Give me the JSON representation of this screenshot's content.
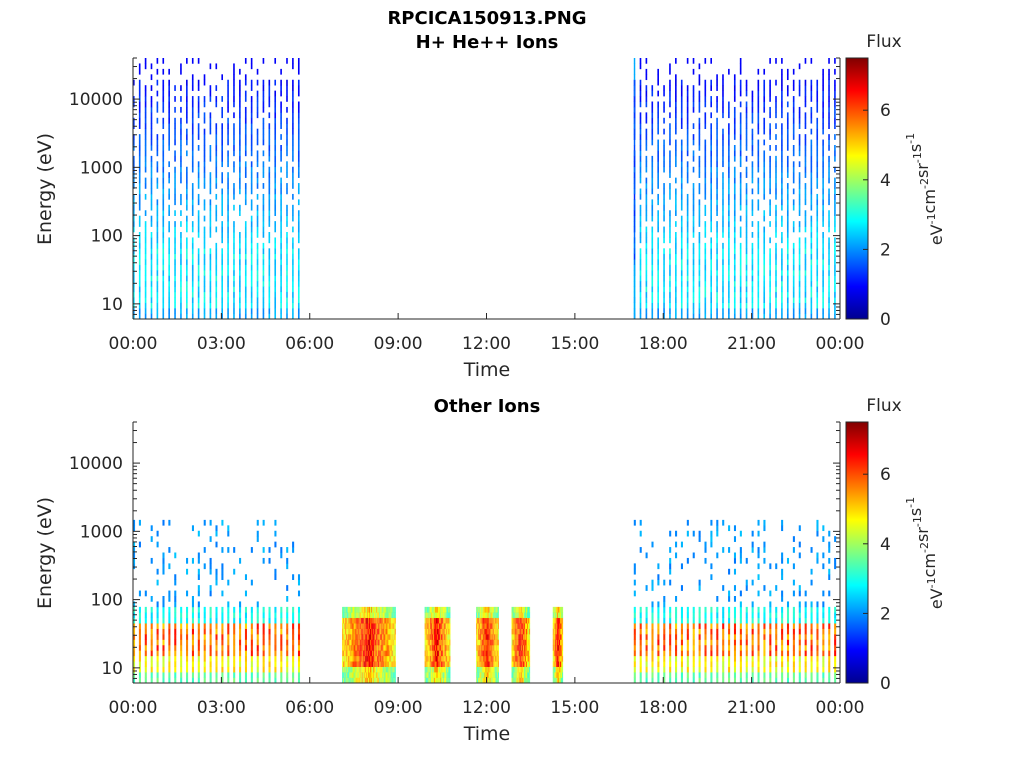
{
  "figure": {
    "title": "RPCICA150913.PNG"
  },
  "chart_data": [
    {
      "type": "heatmap",
      "title": "H+ He++ Ions",
      "xlabel": "Time",
      "ylabel": "Energy (eV)",
      "x_ticks": [
        "00:00",
        "03:00",
        "06:00",
        "09:00",
        "12:00",
        "15:00",
        "18:00",
        "21:00",
        "00:00"
      ],
      "x_range_hours": [
        0,
        24
      ],
      "y_scale": "log",
      "y_ticks": [
        10,
        100,
        1000,
        10000
      ],
      "y_tick_labels": [
        "10",
        "100",
        "1000",
        "10000"
      ],
      "y_range": [
        6,
        40000
      ],
      "colorbar": {
        "title": "Flux",
        "label": "eV-1cm-2sr-1s-1",
        "label_parts": [
          [
            "eV",
            "-1"
          ],
          [
            "cm",
            "-2"
          ],
          [
            "sr",
            "-1"
          ],
          [
            "s",
            "-1"
          ]
        ],
        "ticks": [
          0,
          2,
          4,
          6
        ],
        "range": [
          0,
          7.5
        ],
        "colormap": "jet"
      },
      "data_intervals_hours": [
        [
          0.0,
          5.85
        ],
        [
          17.0,
          24.0
        ]
      ],
      "profile": "solar wind: peak flux ~2-3 at 20-50 eV, low flux (~0.5-1) extending up to ~20000 eV, striped in time"
    },
    {
      "type": "heatmap",
      "title": "Other Ions",
      "xlabel": "Time",
      "ylabel": "Energy (eV)",
      "x_ticks": [
        "00:00",
        "03:00",
        "06:00",
        "09:00",
        "12:00",
        "15:00",
        "18:00",
        "21:00",
        "00:00"
      ],
      "x_range_hours": [
        0,
        24
      ],
      "y_scale": "log",
      "y_ticks": [
        10,
        100,
        1000,
        10000
      ],
      "y_tick_labels": [
        "10",
        "100",
        "1000",
        "10000"
      ],
      "y_range": [
        6,
        40000
      ],
      "colorbar": {
        "title": "Flux",
        "label": "eV-1cm-2sr-1s-1",
        "label_parts": [
          [
            "eV",
            "-1"
          ],
          [
            "cm",
            "-2"
          ],
          [
            "sr",
            "-1"
          ],
          [
            "s",
            "-1"
          ]
        ],
        "ticks": [
          0,
          2,
          4,
          6
        ],
        "range": [
          0,
          7.5
        ],
        "colormap": "jet"
      },
      "data_intervals_hours": [
        [
          0.0,
          5.85
        ],
        [
          17.0,
          24.0
        ]
      ],
      "burst_intervals_hours": [
        [
          7.1,
          8.9
        ],
        [
          9.9,
          10.75
        ],
        [
          11.65,
          12.4
        ],
        [
          12.85,
          13.45
        ],
        [
          14.25,
          14.6
        ]
      ],
      "profile": "striped background with peak flux ~6 at 20-45 eV; dense bursts up to ~80 eV with flux 5-7.5"
    }
  ]
}
